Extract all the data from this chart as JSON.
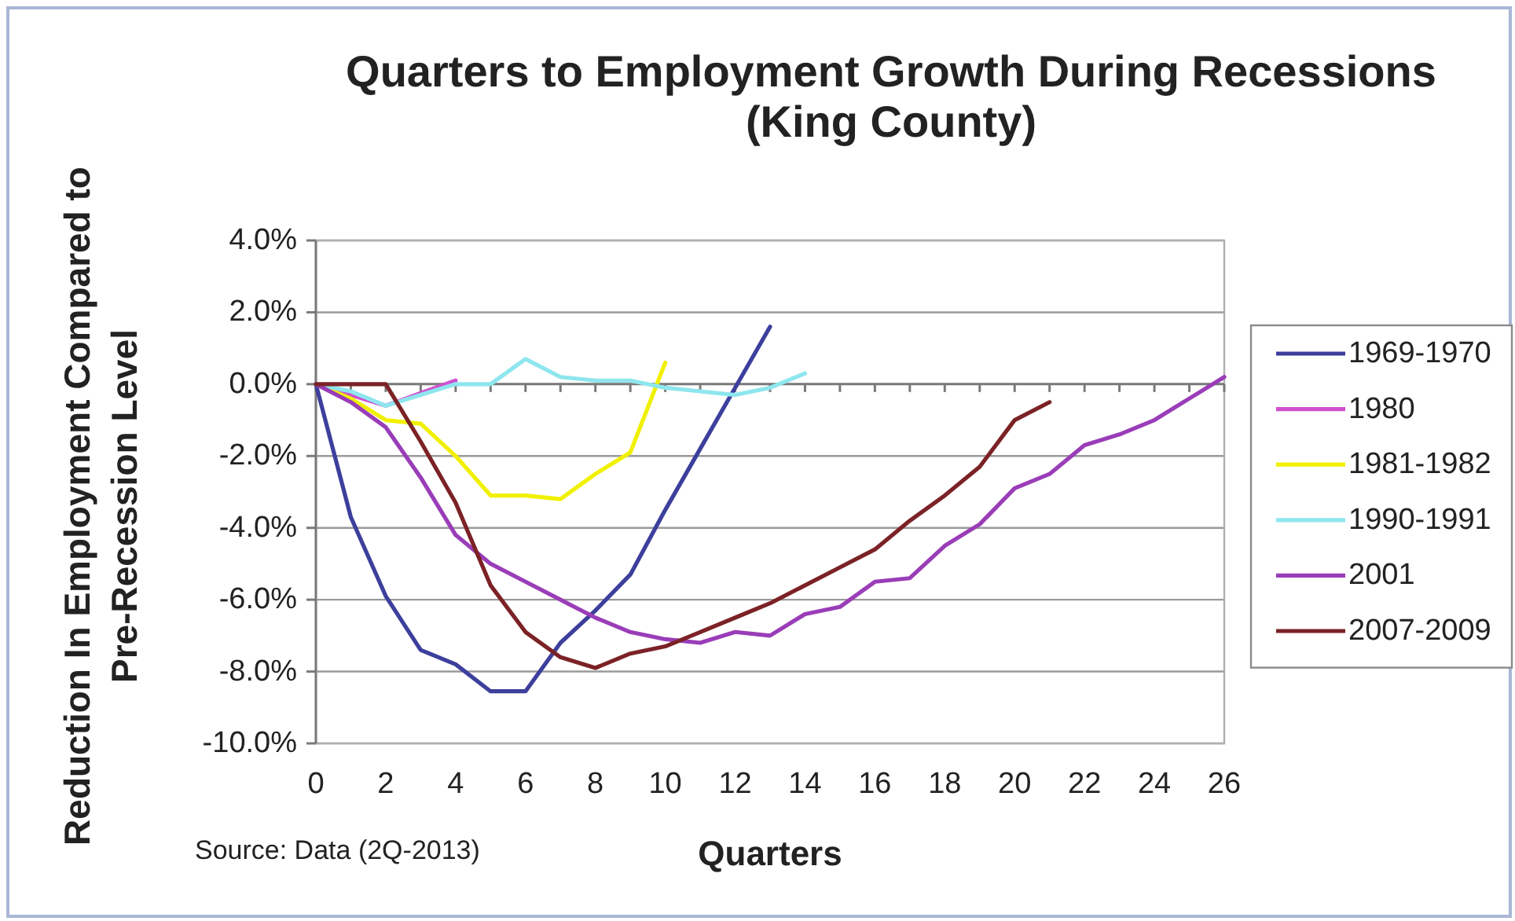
{
  "chart_data": {
    "type": "line",
    "title": "Quarters to Employment Growth During Recessions\n(King County)",
    "xlabel": "Quarters",
    "ylabel": "Reduction In Employment Compared to\nPre-Recession Level",
    "annotations": [
      "Source: Data (2Q-2013)"
    ],
    "xlim": [
      0,
      26
    ],
    "ylim": [
      -10,
      4
    ],
    "xticks": [
      0,
      {
        "value": 1,
        "label": null
      },
      2,
      {
        "value": 3,
        "label": null
      },
      4,
      {
        "value": 5,
        "label": null
      },
      6,
      {
        "value": 7,
        "label": null
      },
      8,
      {
        "value": 9,
        "label": null
      },
      10,
      {
        "value": 11,
        "label": null
      },
      12,
      {
        "value": 13,
        "label": null
      },
      14,
      {
        "value": 15,
        "label": null
      },
      16,
      {
        "value": 17,
        "label": null
      },
      18,
      {
        "value": 19,
        "label": null
      },
      20,
      {
        "value": 21,
        "label": null
      },
      22,
      {
        "value": 23,
        "label": null
      },
      24,
      {
        "value": 25,
        "label": null
      },
      26
    ],
    "yticks": [
      {
        "value": -10,
        "label": "-10.0%"
      },
      {
        "value": -8,
        "label": "-8.0%"
      },
      {
        "value": -6,
        "label": "-6.0%"
      },
      {
        "value": -4,
        "label": "-4.0%"
      },
      {
        "value": -2,
        "label": "-2.0%"
      },
      {
        "value": 0,
        "label": "0.0%"
      },
      {
        "value": 2,
        "label": "2.0%"
      },
      {
        "value": 4,
        "label": "4.0%"
      }
    ],
    "grid": "y",
    "legend": "right",
    "line_style": "solid",
    "series": [
      {
        "name": "1969-1970",
        "color": "#3d3f9c",
        "x": [
          0,
          1,
          2,
          3,
          4,
          5,
          6,
          7,
          8,
          9,
          10,
          11,
          12,
          13
        ],
        "values": [
          0,
          -3.7,
          -5.9,
          -7.4,
          -7.8,
          -8.55,
          -8.55,
          -7.2,
          -6.3,
          -5.3,
          -3.5,
          -1.8,
          -0.1,
          1.6
        ]
      },
      {
        "name": "1980",
        "color": "#d050d0",
        "x": [
          0,
          1,
          2,
          3,
          4
        ],
        "values": [
          0,
          -0.3,
          -0.6,
          -0.25,
          0.1
        ]
      },
      {
        "name": "1981-1982",
        "color": "#f0f000",
        "x": [
          0,
          1,
          2,
          3,
          4,
          5,
          6,
          7,
          8,
          9,
          10
        ],
        "values": [
          0,
          -0.4,
          -1.0,
          -1.1,
          -2.0,
          -3.1,
          -3.1,
          -3.2,
          -2.5,
          -1.9,
          0.6
        ]
      },
      {
        "name": "1990-1991",
        "color": "#8ee6ee",
        "x": [
          0,
          1,
          2,
          3,
          4,
          5,
          6,
          7,
          8,
          9,
          10,
          11,
          12,
          13,
          14
        ],
        "values": [
          0,
          -0.2,
          -0.6,
          -0.3,
          0,
          0,
          0.7,
          0.2,
          0.1,
          0.1,
          -0.1,
          -0.2,
          -0.3,
          -0.1,
          0.3
        ]
      },
      {
        "name": "2001",
        "color": "#9a3db8",
        "x": [
          0,
          1,
          2,
          3,
          4,
          5,
          6,
          7,
          8,
          9,
          10,
          11,
          12,
          13,
          14,
          15,
          16,
          17,
          18,
          19,
          20,
          21,
          22,
          23,
          24,
          25,
          26
        ],
        "values": [
          0,
          -0.5,
          -1.2,
          -2.6,
          -4.2,
          -5.0,
          -5.5,
          -6.0,
          -6.5,
          -6.9,
          -7.1,
          -7.2,
          -6.9,
          -7.0,
          -6.4,
          -6.2,
          -5.5,
          -5.4,
          -4.5,
          -3.9,
          -2.9,
          -2.5,
          -1.7,
          -1.4,
          -1.0,
          -0.4,
          0.2
        ]
      },
      {
        "name": "2007-2009",
        "color": "#7b2226",
        "x": [
          0,
          1,
          2,
          3,
          4,
          5,
          6,
          7,
          8,
          9,
          10,
          11,
          12,
          13,
          14,
          15,
          16,
          17,
          18,
          19,
          20,
          21
        ],
        "values": [
          0,
          0,
          0,
          -1.6,
          -3.3,
          -5.6,
          -6.9,
          -7.6,
          -7.9,
          -7.5,
          -7.3,
          -6.9,
          -6.5,
          -6.1,
          -5.6,
          -5.1,
          -4.6,
          -3.8,
          -3.1,
          -2.3,
          -1.0,
          -0.5
        ]
      }
    ]
  }
}
